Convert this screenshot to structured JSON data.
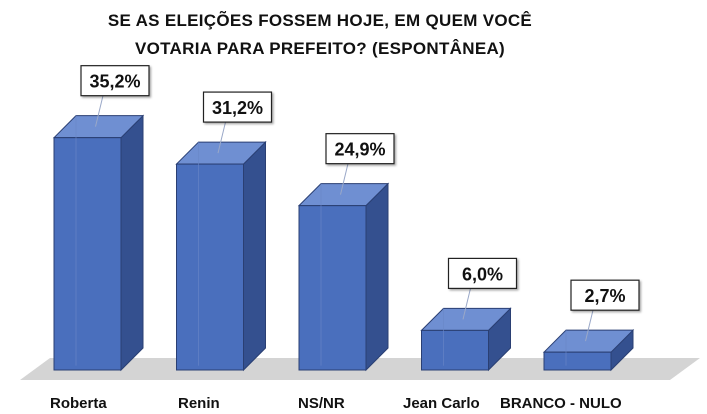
{
  "chart_data": {
    "type": "bar",
    "title_lines": [
      "SE AS ELEIÇÕES FOSSEM HOJE, EM QUEM VOCÊ",
      "VOTARIA PARA PREFEITO? (ESPONTÂNEA)"
    ],
    "categories": [
      "Roberta",
      "Renin",
      "NS/NR",
      "Jean Carlo",
      "BRANCO - NULO"
    ],
    "values": [
      35.2,
      31.2,
      24.9,
      6.0,
      2.7
    ],
    "value_labels": [
      "35,2%",
      "31,2%",
      "24,9%",
      "6,0%",
      "2,7%"
    ],
    "ylim": [
      0,
      40
    ],
    "grid": false,
    "legend": "none",
    "bar_style": "3d",
    "colors": {
      "bar_front": "#4a6fbd",
      "bar_side": "#34508f",
      "bar_top": "#6f8fd2",
      "bar_edge": "#2a3f73",
      "floor": "#d4d4d4"
    }
  }
}
